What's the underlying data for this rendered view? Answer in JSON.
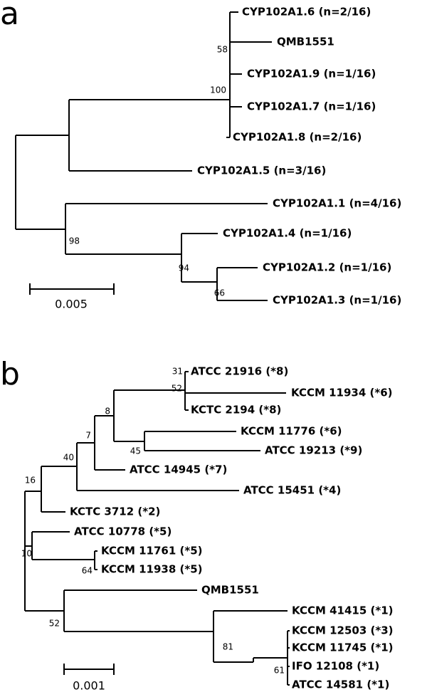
{
  "panel_a": {
    "label": "a",
    "leaves": [
      "CYP102A1.6 (n=2/16)",
      "QMB1551",
      "CYP102A1.9 (n=1/16)",
      "CYP102A1.7 (n=1/16)",
      "CYP102A1.8 (n=2/16)",
      "CYP102A1.5 (n=3/16)",
      "CYP102A1.1 (n=4/16)",
      "CYP102A1.4 (n=1/16)",
      "CYP102A1.2 (n=1/16)",
      "CYP102A1.3 (n=1/16)"
    ],
    "bootstrap": [
      "58",
      "100",
      "98",
      "94",
      "66"
    ],
    "scale_bar": "0.005"
  },
  "panel_b": {
    "label": "b",
    "leaves": [
      "ATCC 21916 (*8)",
      "KCCM 11934 (*6)",
      "KCTC 2194 (*8)",
      "KCCM 11776 (*6)",
      "ATCC 19213 (*9)",
      "ATCC 14945 (*7)",
      "ATCC 15451 (*4)",
      "KCTC 3712 (*2)",
      "ATCC 10778 (*5)",
      "KCCM 11761 (*5)",
      "KCCM 11938 (*5)",
      "QMB1551",
      "KCCM 41415 (*1)",
      "KCCM 12503 (*3)",
      "KCCM 11745 (*1)",
      "IFO 12108 (*1)",
      "ATCC 14581 (*1)"
    ],
    "bootstrap": [
      "31",
      "52",
      "8",
      "7",
      "45",
      "40",
      "16",
      "10",
      "64",
      "52",
      "81",
      "61"
    ],
    "scale_bar": "0.001"
  }
}
